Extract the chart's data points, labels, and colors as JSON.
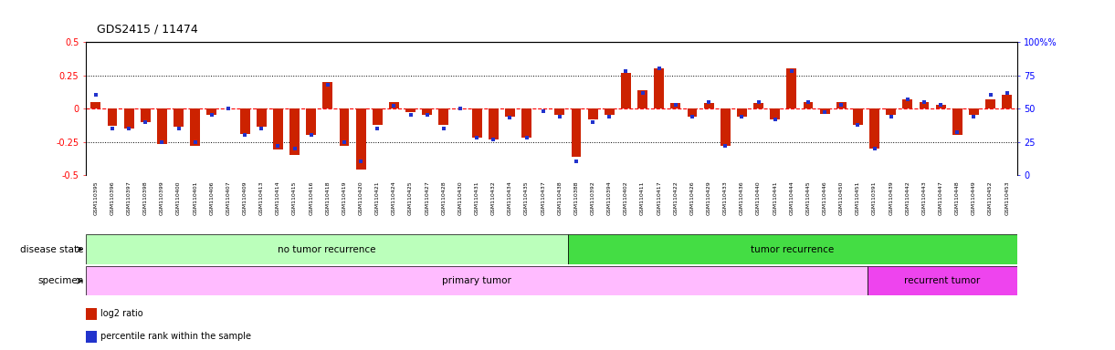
{
  "title": "GDS2415 / 11474",
  "samples": [
    "GSM110395",
    "GSM110396",
    "GSM110397",
    "GSM110398",
    "GSM110399",
    "GSM110400",
    "GSM110401",
    "GSM110406",
    "GSM110407",
    "GSM110409",
    "GSM110413",
    "GSM110414",
    "GSM110415",
    "GSM110416",
    "GSM110418",
    "GSM110419",
    "GSM110420",
    "GSM110421",
    "GSM110424",
    "GSM110425",
    "GSM110427",
    "GSM110428",
    "GSM110430",
    "GSM110431",
    "GSM110432",
    "GSM110434",
    "GSM110435",
    "GSM110437",
    "GSM110438",
    "GSM110388",
    "GSM110392",
    "GSM110394",
    "GSM110402",
    "GSM110411",
    "GSM110417",
    "GSM110422",
    "GSM110426",
    "GSM110429",
    "GSM110433",
    "GSM110436",
    "GSM110440",
    "GSM110441",
    "GSM110444",
    "GSM110445",
    "GSM110446",
    "GSM110450",
    "GSM110451",
    "GSM110391",
    "GSM110439",
    "GSM110442",
    "GSM110443",
    "GSM110447",
    "GSM110448",
    "GSM110449",
    "GSM110452",
    "GSM110453"
  ],
  "log2_ratio": [
    0.05,
    -0.13,
    -0.15,
    -0.1,
    -0.27,
    -0.14,
    -0.28,
    -0.05,
    0.0,
    -0.19,
    -0.14,
    -0.31,
    -0.35,
    -0.2,
    0.2,
    -0.28,
    -0.46,
    -0.12,
    0.05,
    -0.03,
    -0.05,
    -0.12,
    0.0,
    -0.22,
    -0.23,
    -0.06,
    -0.22,
    0.0,
    -0.05,
    -0.36,
    -0.08,
    -0.05,
    0.27,
    0.14,
    0.3,
    0.04,
    -0.06,
    0.04,
    -0.28,
    -0.06,
    0.04,
    -0.08,
    0.3,
    0.05,
    -0.04,
    0.05,
    -0.12,
    -0.3,
    -0.05,
    0.07,
    0.05,
    0.03,
    -0.2,
    -0.05,
    0.07,
    0.1
  ],
  "percentile": [
    60,
    35,
    35,
    40,
    25,
    35,
    25,
    45,
    50,
    30,
    35,
    22,
    20,
    30,
    68,
    25,
    10,
    35,
    52,
    45,
    45,
    35,
    50,
    28,
    27,
    43,
    28,
    48,
    44,
    10,
    40,
    44,
    78,
    62,
    80,
    53,
    44,
    55,
    22,
    44,
    55,
    42,
    78,
    55,
    47,
    53,
    38,
    20,
    44,
    57,
    55,
    53,
    32,
    44,
    60,
    62
  ],
  "no_recurrence_count": 29,
  "total_samples": 56,
  "primary_tumor_count": 47,
  "bar_color": "#CC2200",
  "dot_color": "#2233CC",
  "ylim_left": [
    -0.5,
    0.5
  ],
  "yticks_left": [
    -0.5,
    -0.25,
    0.0,
    0.25,
    0.5
  ],
  "yticks_right": [
    0,
    25,
    50,
    75,
    100
  ],
  "hlines": [
    -0.25,
    0.0,
    0.25
  ],
  "light_green": "#BBFFBB",
  "dark_green": "#44DD44",
  "light_pink": "#FFBBFF",
  "dark_pink": "#EE44EE",
  "disease_state_label": "disease state",
  "specimen_label": "specimen",
  "no_recurrence_label": "no tumor recurrence",
  "recurrence_label": "tumor recurrence",
  "primary_tumor_label": "primary tumor",
  "recurrent_label": "recurrent tumor",
  "legend_red": "log2 ratio",
  "legend_blue": "percentile rank within the sample"
}
